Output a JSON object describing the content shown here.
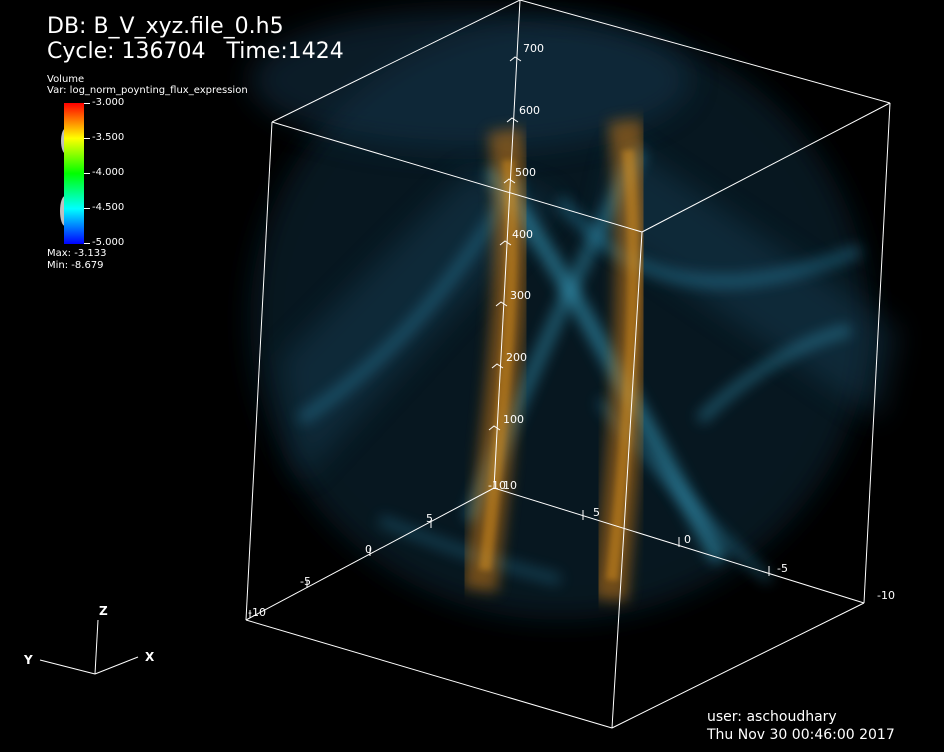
{
  "header": {
    "db_label": "DB:",
    "db_name": "B_V_xyz.file_0.h5",
    "cycle_label": "Cycle:",
    "cycle_value": "136704",
    "time_label": "Time:",
    "time_value": "1424"
  },
  "legend": {
    "plot_type": "Volume",
    "variable": "Var: log_norm_poynting_flux_expression",
    "ticks": [
      "-3.000",
      "-3.500",
      "-4.000",
      "-4.500",
      "-5.000"
    ],
    "max": "Max: -3.133",
    "min": "Min: -8.679",
    "colormap": [
      "#ff0000",
      "#ffff00",
      "#00ff00",
      "#00ffff",
      "#0000ff"
    ]
  },
  "axes": {
    "vertical_ticks": [
      "100",
      "200",
      "300",
      "400",
      "500",
      "600",
      "700"
    ],
    "vertical_zero_label": "-10",
    "x_axis_ticks": [
      "10",
      "5",
      "0",
      "-5",
      "-10"
    ],
    "y_axis_ticks": [
      "5",
      "0",
      "-5",
      "-10"
    ],
    "triad": {
      "x": "X",
      "y": "Y",
      "z": "Z"
    }
  },
  "footer": {
    "user": "user: aschoudhary",
    "datetime": "Thu Nov 30 00:46:00 2017"
  },
  "colors": {
    "background": "#000000",
    "box": "#ffffff",
    "volume_orange": "#c87814",
    "volume_cyan": "#3aa6c8"
  }
}
